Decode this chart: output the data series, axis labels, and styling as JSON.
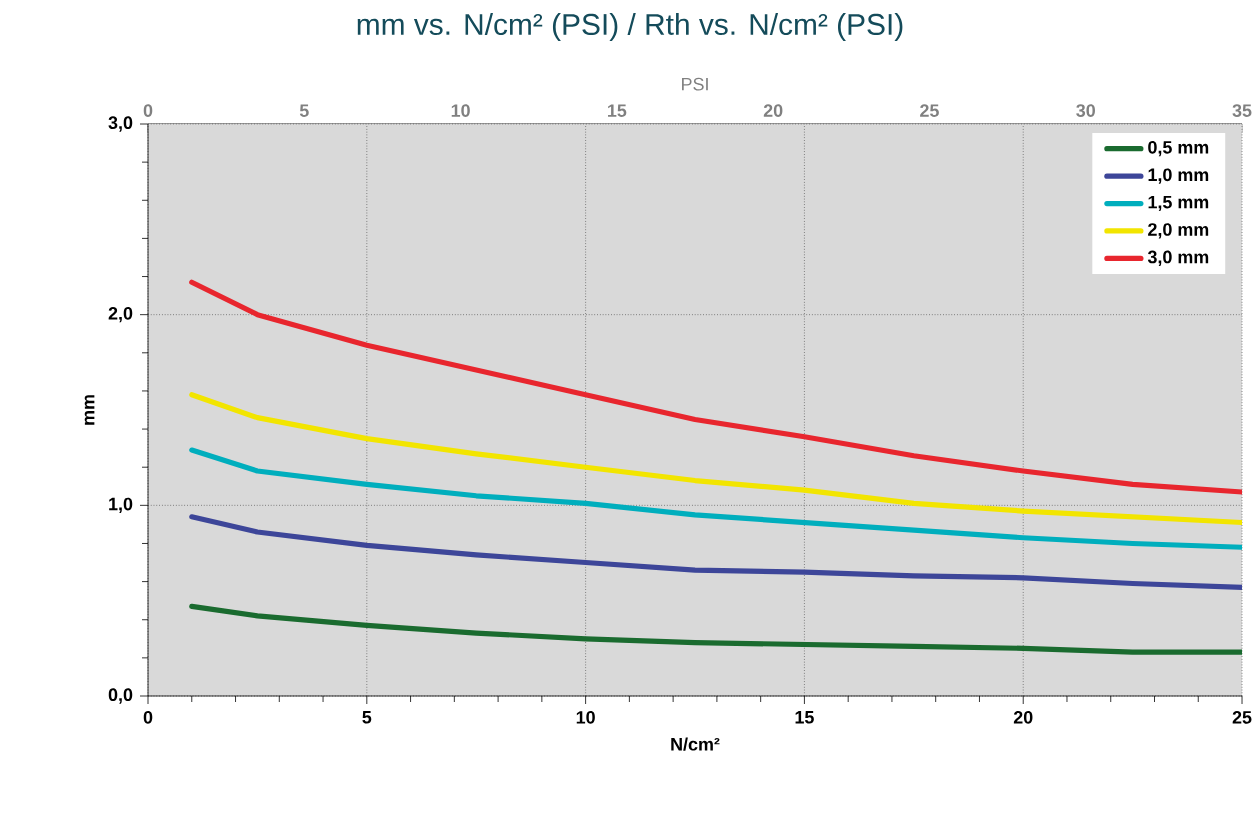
{
  "chart_data": {
    "type": "line",
    "title": "mm vs. N/cm² (PSI) / Rth vs. N/cm² (PSI)",
    "xlabel": "N/cm²",
    "ylabel": "mm",
    "x2label": "PSI",
    "x": [
      1,
      2.5,
      5,
      7.5,
      10,
      12.5,
      15,
      17.5,
      20,
      22.5,
      25
    ],
    "series": [
      {
        "name": "0,5 mm",
        "color": "#1a6b2f",
        "values": [
          0.47,
          0.42,
          0.37,
          0.33,
          0.3,
          0.28,
          0.27,
          0.26,
          0.25,
          0.23,
          0.23
        ]
      },
      {
        "name": "1,0 mm",
        "color": "#3d4699",
        "values": [
          0.94,
          0.86,
          0.79,
          0.74,
          0.7,
          0.66,
          0.65,
          0.63,
          0.62,
          0.59,
          0.57
        ]
      },
      {
        "name": "1,5 mm",
        "color": "#00aebd",
        "values": [
          1.29,
          1.18,
          1.11,
          1.05,
          1.01,
          0.95,
          0.91,
          0.87,
          0.83,
          0.8,
          0.78
        ]
      },
      {
        "name": "2,0 mm",
        "color": "#f2e500",
        "values": [
          1.58,
          1.46,
          1.35,
          1.27,
          1.2,
          1.13,
          1.08,
          1.01,
          0.97,
          0.94,
          0.91
        ]
      },
      {
        "name": "3,0 mm",
        "color": "#e8262e",
        "values": [
          2.17,
          2.0,
          1.84,
          1.71,
          1.58,
          1.45,
          1.36,
          1.26,
          1.18,
          1.11,
          1.07
        ]
      }
    ],
    "xlim": [
      0,
      25
    ],
    "xticks": [
      0,
      5,
      10,
      15,
      20,
      25
    ],
    "x2lim": [
      0,
      35
    ],
    "x2ticks": [
      0,
      5,
      10,
      15,
      20,
      25,
      30,
      35
    ],
    "ylim": [
      0,
      3
    ],
    "yticks": [
      {
        "value": 0,
        "label": "0,0"
      },
      {
        "value": 1,
        "label": "1,0"
      },
      {
        "value": 2,
        "label": "2,0"
      },
      {
        "value": 3,
        "label": "3,0"
      }
    ],
    "grid": true,
    "legend": "top right"
  }
}
